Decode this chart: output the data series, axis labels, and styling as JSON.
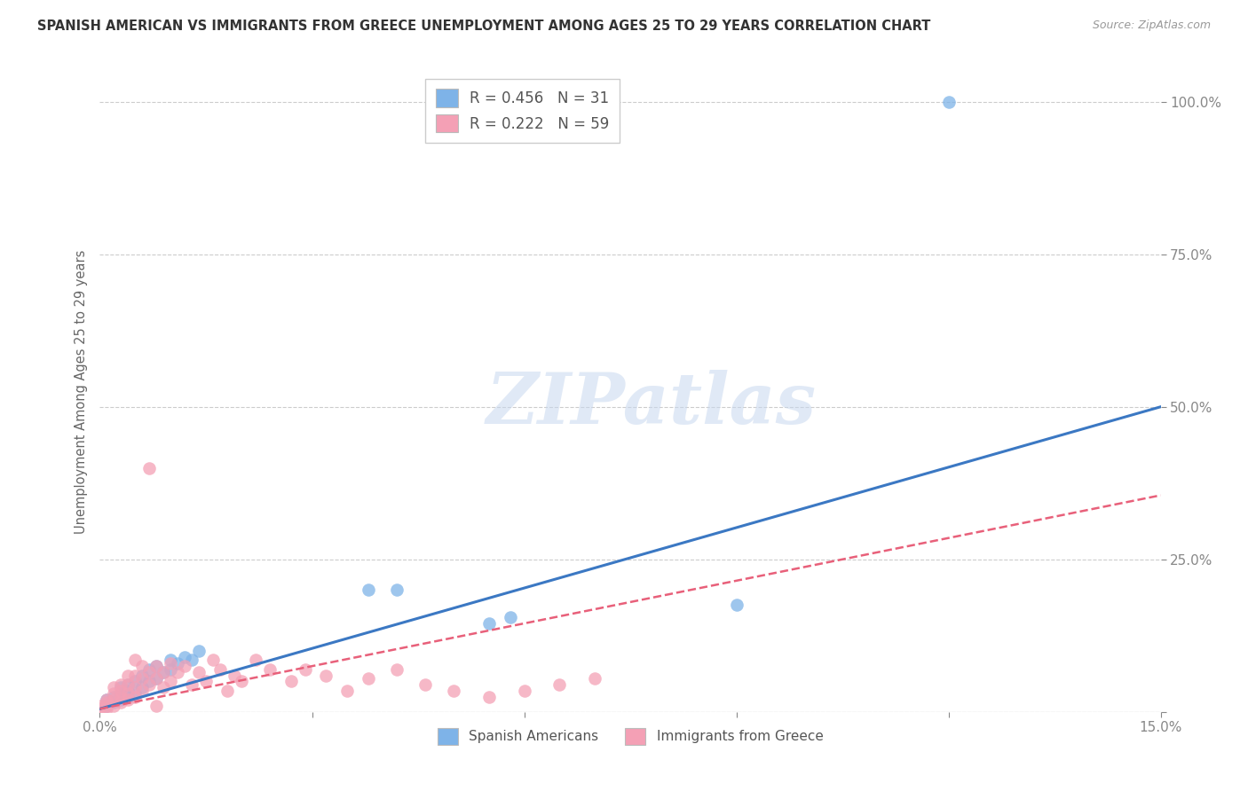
{
  "title": "SPANISH AMERICAN VS IMMIGRANTS FROM GREECE UNEMPLOYMENT AMONG AGES 25 TO 29 YEARS CORRELATION CHART",
  "source": "Source: ZipAtlas.com",
  "ylabel": "Unemployment Among Ages 25 to 29 years",
  "xlabel": "",
  "xlim": [
    0.0,
    0.15
  ],
  "ylim": [
    0.0,
    1.05
  ],
  "xticks": [
    0.0,
    0.03,
    0.06,
    0.09,
    0.12,
    0.15
  ],
  "xtick_labels": [
    "0.0%",
    "",
    "",
    "",
    "",
    "15.0%"
  ],
  "ytick_labels": [
    "",
    "25.0%",
    "50.0%",
    "75.0%",
    "100.0%"
  ],
  "yticks": [
    0.0,
    0.25,
    0.5,
    0.75,
    1.0
  ],
  "blue_color": "#7eb3e8",
  "pink_color": "#f4a0b5",
  "blue_line_color": "#3b78c3",
  "pink_line_color": "#e8607a",
  "legend_R_blue": "R = 0.456",
  "legend_N_blue": "N = 31",
  "legend_R_pink": "R = 0.222",
  "legend_N_pink": "N = 59",
  "watermark": "ZIPatlas",
  "blue_line_x0": 0.0,
  "blue_line_y0": 0.005,
  "blue_line_x1": 0.15,
  "blue_line_y1": 0.5,
  "pink_line_x0": 0.0,
  "pink_line_y0": 0.005,
  "pink_line_x1": 0.15,
  "pink_line_y1": 0.355,
  "blue_scatter_x": [
    0.001,
    0.001,
    0.002,
    0.002,
    0.003,
    0.003,
    0.003,
    0.004,
    0.004,
    0.004,
    0.005,
    0.005,
    0.006,
    0.006,
    0.007,
    0.007,
    0.008,
    0.008,
    0.009,
    0.01,
    0.01,
    0.011,
    0.012,
    0.013,
    0.014,
    0.038,
    0.042,
    0.055,
    0.058,
    0.09,
    0.12
  ],
  "blue_scatter_y": [
    0.01,
    0.02,
    0.015,
    0.025,
    0.02,
    0.03,
    0.04,
    0.025,
    0.035,
    0.045,
    0.03,
    0.05,
    0.04,
    0.06,
    0.05,
    0.07,
    0.055,
    0.075,
    0.065,
    0.07,
    0.085,
    0.08,
    0.09,
    0.085,
    0.1,
    0.2,
    0.2,
    0.145,
    0.155,
    0.175,
    1.0
  ],
  "pink_scatter_x": [
    0.0,
    0.0,
    0.001,
    0.001,
    0.001,
    0.001,
    0.002,
    0.002,
    0.002,
    0.002,
    0.003,
    0.003,
    0.003,
    0.003,
    0.004,
    0.004,
    0.004,
    0.004,
    0.005,
    0.005,
    0.005,
    0.005,
    0.006,
    0.006,
    0.006,
    0.007,
    0.007,
    0.007,
    0.008,
    0.008,
    0.008,
    0.009,
    0.009,
    0.01,
    0.01,
    0.011,
    0.012,
    0.013,
    0.014,
    0.015,
    0.016,
    0.017,
    0.018,
    0.019,
    0.02,
    0.022,
    0.024,
    0.027,
    0.029,
    0.032,
    0.035,
    0.038,
    0.042,
    0.046,
    0.05,
    0.055,
    0.06,
    0.065,
    0.07
  ],
  "pink_scatter_y": [
    0.005,
    0.01,
    0.005,
    0.01,
    0.015,
    0.02,
    0.01,
    0.02,
    0.03,
    0.04,
    0.015,
    0.025,
    0.035,
    0.045,
    0.02,
    0.03,
    0.045,
    0.06,
    0.025,
    0.04,
    0.06,
    0.085,
    0.035,
    0.055,
    0.075,
    0.045,
    0.065,
    0.4,
    0.055,
    0.075,
    0.01,
    0.04,
    0.065,
    0.05,
    0.08,
    0.065,
    0.075,
    0.045,
    0.065,
    0.05,
    0.085,
    0.07,
    0.035,
    0.06,
    0.05,
    0.085,
    0.07,
    0.05,
    0.07,
    0.06,
    0.035,
    0.055,
    0.07,
    0.045,
    0.035,
    0.025,
    0.035,
    0.045,
    0.055
  ]
}
